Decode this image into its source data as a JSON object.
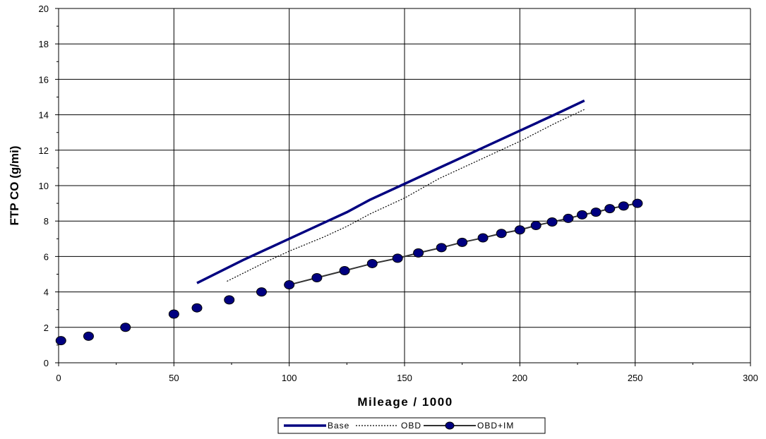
{
  "chart_data": {
    "type": "line",
    "xlabel": "Mileage / 1000",
    "ylabel": "FTP CO  (g/mi)",
    "xlim": [
      0,
      300
    ],
    "ylim": [
      0,
      20
    ],
    "x_ticks": [
      0,
      50,
      100,
      150,
      200,
      250,
      300
    ],
    "y_ticks": [
      0,
      2,
      4,
      6,
      8,
      10,
      12,
      14,
      16,
      18,
      20
    ],
    "grid": true,
    "legend_position": "bottom",
    "series": [
      {
        "name": "Base",
        "style": "thick-solid",
        "color": "#000080",
        "x": [
          60,
          80,
          100,
          115,
          125,
          135,
          150,
          165,
          180,
          200,
          215,
          228
        ],
        "y": [
          4.5,
          5.8,
          7.0,
          7.9,
          8.5,
          9.2,
          10.1,
          11.0,
          11.9,
          13.1,
          14.0,
          14.8
        ]
      },
      {
        "name": "OBD",
        "style": "dotted",
        "color": "#000000",
        "x": [
          73,
          90,
          100,
          115,
          125,
          135,
          150,
          165,
          180,
          200,
          215,
          228
        ],
        "y": [
          4.6,
          5.7,
          6.3,
          7.1,
          7.7,
          8.4,
          9.3,
          10.4,
          11.3,
          12.5,
          13.5,
          14.3
        ]
      },
      {
        "name": "OBD+IM",
        "style": "line-with-markers",
        "color": "#333333",
        "marker_color": "#000080",
        "x": [
          1,
          13,
          29,
          50,
          60,
          74,
          88,
          100,
          112,
          124,
          136,
          147,
          156,
          166,
          175,
          184,
          192,
          200,
          207,
          214,
          221,
          227,
          233,
          239,
          245,
          251
        ],
        "y": [
          1.25,
          1.5,
          2.0,
          2.75,
          3.1,
          3.55,
          4.0,
          4.4,
          4.8,
          5.2,
          5.6,
          5.9,
          6.2,
          6.5,
          6.8,
          7.05,
          7.3,
          7.5,
          7.75,
          7.95,
          8.15,
          8.35,
          8.5,
          8.7,
          8.85,
          9.0
        ],
        "line_start_x": 100
      }
    ]
  }
}
